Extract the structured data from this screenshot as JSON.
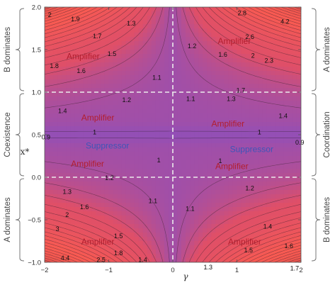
{
  "chart_data": {
    "type": "heatmap",
    "xlabel": "γ",
    "ylabel": "x*",
    "xlim": [
      -2,
      2
    ],
    "ylim": [
      -1,
      2
    ],
    "x_ticks": [
      "−2",
      "−1",
      "0",
      "1",
      "2"
    ],
    "y_ticks": [
      "−1.0",
      "−0.5",
      "0.0",
      "0.5",
      "1.0",
      "1.5",
      "2.0"
    ],
    "x_tick_values": [
      -2,
      -1,
      0,
      1,
      2
    ],
    "y_tick_values": [
      -1,
      -0.5,
      0,
      0.5,
      1,
      1.5,
      2
    ],
    "reference_lines": {
      "vertical": [
        0
      ],
      "horizontal": [
        0,
        1
      ]
    },
    "grid": false,
    "colors": {
      "low": "#8a4fbf",
      "mid": "#df4f68",
      "high": "#f85a52",
      "max": "#2a1010",
      "amplifier_text": "#b21e2e",
      "suppressor_text": "#3e55b8",
      "dashed_line": "#e9e9e9"
    },
    "contour_labels": [
      {
        "x": -1.92,
        "y": 1.91,
        "text": "2"
      },
      {
        "x": -1.52,
        "y": 1.86,
        "text": "1.9"
      },
      {
        "x": -1.18,
        "y": 1.66,
        "text": "1.7"
      },
      {
        "x": -0.65,
        "y": 1.81,
        "text": "1.3"
      },
      {
        "x": -1.85,
        "y": 1.31,
        "text": "1.8"
      },
      {
        "x": -1.43,
        "y": 1.25,
        "text": "1.6"
      },
      {
        "x": -0.95,
        "y": 1.45,
        "text": "1.5"
      },
      {
        "x": -0.25,
        "y": 1.17,
        "text": "1.1"
      },
      {
        "x": -1.72,
        "y": 0.78,
        "text": "1.4"
      },
      {
        "x": -0.72,
        "y": 0.91,
        "text": "1.2"
      },
      {
        "x": 0.28,
        "y": 0.92,
        "text": "1.1"
      },
      {
        "x": 0.91,
        "y": 0.92,
        "text": "1.3"
      },
      {
        "x": 1.72,
        "y": 0.72,
        "text": "1.4"
      },
      {
        "x": 1.06,
        "y": 1.02,
        "text": "1.7"
      },
      {
        "x": 0.3,
        "y": 1.54,
        "text": "1.2"
      },
      {
        "x": 0.78,
        "y": 1.44,
        "text": "1.6"
      },
      {
        "x": 1.25,
        "y": 1.43,
        "text": "2"
      },
      {
        "x": 1.5,
        "y": 1.37,
        "text": "2.3"
      },
      {
        "x": 1.2,
        "y": 1.65,
        "text": "2.6"
      },
      {
        "x": 1.08,
        "y": 1.93,
        "text": "2.8"
      },
      {
        "x": 1.75,
        "y": 1.83,
        "text": "4.2"
      },
      {
        "x": -1.22,
        "y": 0.53,
        "text": "1"
      },
      {
        "x": -0.22,
        "y": 0.2,
        "text": "1"
      },
      {
        "x": 0.74,
        "y": 0.19,
        "text": "1"
      },
      {
        "x": 1.35,
        "y": 0.53,
        "text": "1"
      },
      {
        "x": -1.98,
        "y": 0.47,
        "text": "0.9"
      },
      {
        "x": 1.98,
        "y": 0.41,
        "text": "0.9"
      },
      {
        "x": -1.65,
        "y": -0.17,
        "text": "1.3"
      },
      {
        "x": -0.99,
        "y": -0.01,
        "text": "1.2"
      },
      {
        "x": 1.2,
        "y": -0.13,
        "text": "1.2"
      },
      {
        "x": -0.31,
        "y": -0.28,
        "text": "1.1"
      },
      {
        "x": 0.27,
        "y": -0.37,
        "text": "1.1"
      },
      {
        "x": -1.38,
        "y": -0.35,
        "text": "1.6"
      },
      {
        "x": -1.65,
        "y": -0.44,
        "text": "2"
      },
      {
        "x": -0.85,
        "y": -0.69,
        "text": "1.5"
      },
      {
        "x": 1.48,
        "y": -0.58,
        "text": "1.4"
      },
      {
        "x": -1.8,
        "y": -0.61,
        "text": "3"
      },
      {
        "x": -0.85,
        "y": -0.89,
        "text": "1.8"
      },
      {
        "x": 1.18,
        "y": -0.86,
        "text": "1.5"
      },
      {
        "x": 1.81,
        "y": -0.81,
        "text": "1.6"
      },
      {
        "x": -1.68,
        "y": -0.95,
        "text": "4.4"
      },
      {
        "x": -1.12,
        "y": -0.97,
        "text": "2.5"
      },
      {
        "x": -0.47,
        "y": -0.97,
        "text": "1.4"
      },
      {
        "x": 0.55,
        "y": -1.06,
        "text": "1.3"
      },
      {
        "x": 1.9,
        "y": -1.07,
        "text": "1.7"
      }
    ],
    "region_labels": [
      {
        "x": -1.4,
        "y": 1.42,
        "text": "Amplifier",
        "kind": "amp"
      },
      {
        "x": 0.96,
        "y": 1.6,
        "text": "Amplifier",
        "kind": "amp"
      },
      {
        "x": -1.17,
        "y": 0.7,
        "text": "Amplifier",
        "kind": "amp"
      },
      {
        "x": 0.86,
        "y": 0.63,
        "text": "Amplifier",
        "kind": "amp"
      },
      {
        "x": -1.02,
        "y": 0.37,
        "text": "Suppressor",
        "kind": "sup"
      },
      {
        "x": 1.23,
        "y": 0.33,
        "text": "Suppressor",
        "kind": "sup"
      },
      {
        "x": -1.33,
        "y": 0.16,
        "text": "Amplifier",
        "kind": "amp"
      },
      {
        "x": 0.92,
        "y": 0.13,
        "text": "Amplifier",
        "kind": "amp"
      },
      {
        "x": -1.17,
        "y": -0.76,
        "text": "Amplifier",
        "kind": "amp"
      },
      {
        "x": 1.12,
        "y": -0.76,
        "text": "Amplifier",
        "kind": "amp"
      }
    ],
    "left_regions": [
      {
        "text": "B dominates",
        "y_from": 1,
        "y_to": 2
      },
      {
        "text": "Coexistence",
        "y_from": 0,
        "y_to": 1
      },
      {
        "text": "A dominates",
        "y_from": -1,
        "y_to": 0
      }
    ],
    "right_regions": [
      {
        "text": "A dominates",
        "y_from": 1,
        "y_to": 2
      },
      {
        "text": "Coordination",
        "y_from": 0,
        "y_to": 1
      },
      {
        "text": "B dominates",
        "y_from": -1,
        "y_to": 0
      }
    ]
  }
}
